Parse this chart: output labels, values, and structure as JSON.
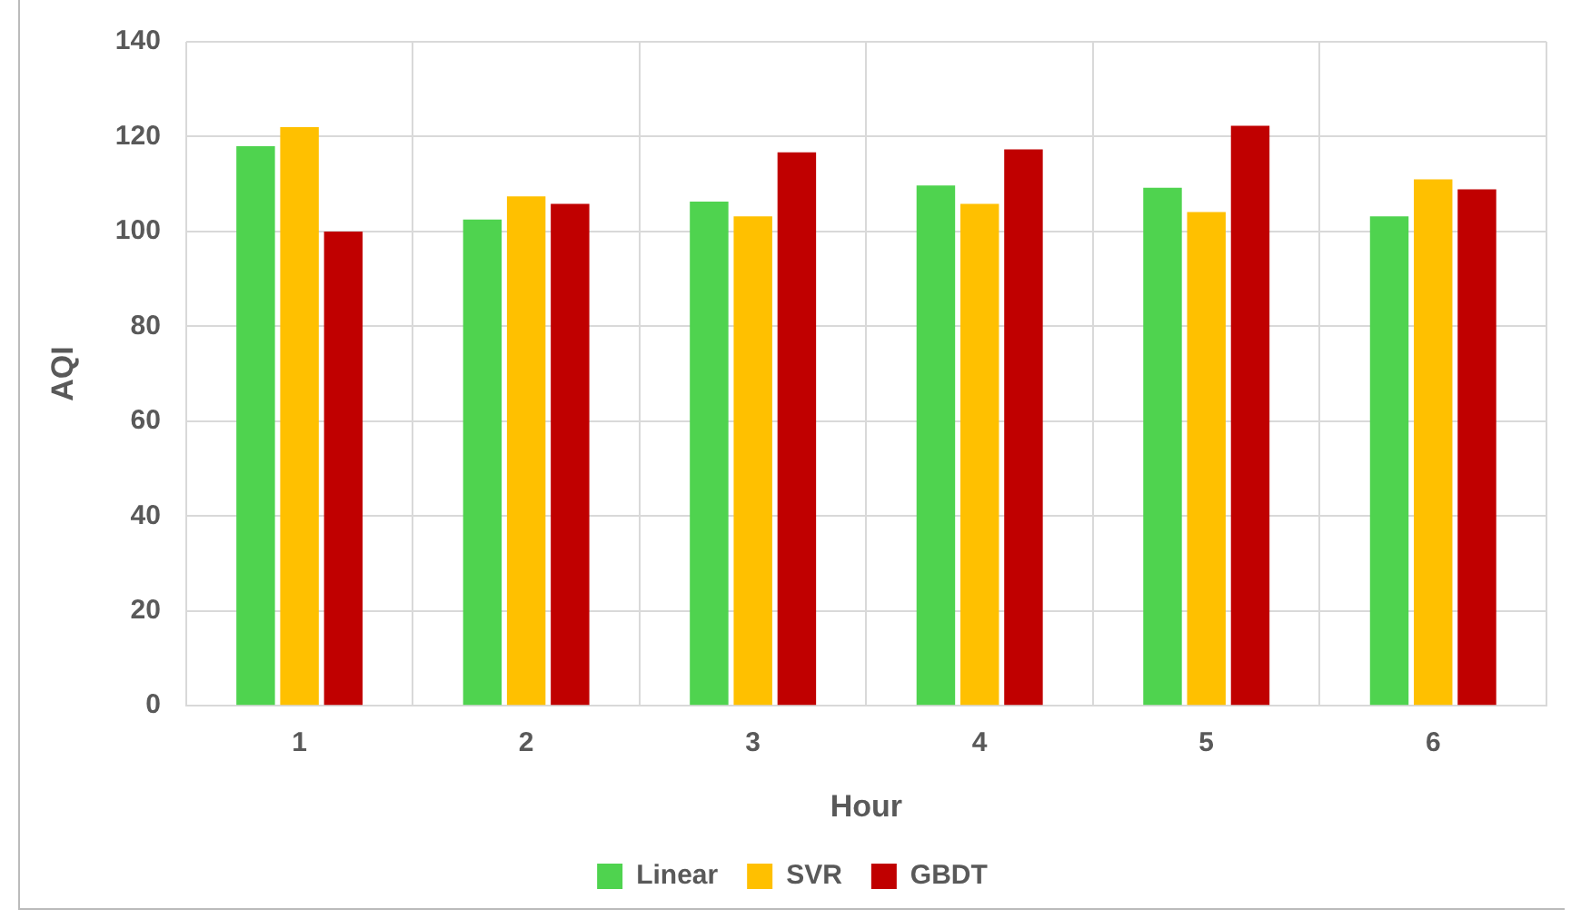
{
  "chart_data": {
    "type": "bar",
    "xlabel": "Hour",
    "ylabel": "AQI",
    "categories": [
      "1",
      "2",
      "3",
      "4",
      "5",
      "6"
    ],
    "series": [
      {
        "name": "Linear",
        "color": "#4fd34f",
        "values": [
          118,
          102.5,
          106.3,
          109.7,
          109.2,
          103.2
        ]
      },
      {
        "name": "SVR",
        "color": "#ffc000",
        "values": [
          122,
          107.4,
          103.2,
          105.8,
          104.1,
          111
        ]
      },
      {
        "name": "GBDT",
        "color": "#c00000",
        "values": [
          100,
          105.8,
          116.7,
          117.3,
          122.3,
          108.9
        ]
      }
    ],
    "ylim": [
      0,
      140
    ],
    "yticks": [
      0,
      20,
      40,
      60,
      80,
      100,
      120,
      140
    ],
    "grid": true,
    "legend": "bottom"
  }
}
